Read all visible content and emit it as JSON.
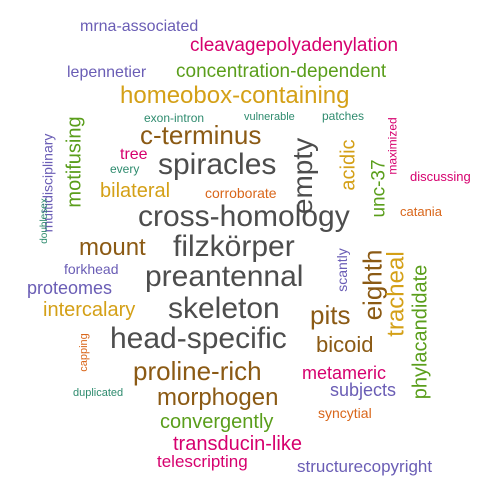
{
  "colors": {
    "dark": "#4d4d4d",
    "gold": "#d4a017",
    "green": "#5a9e1b",
    "magenta": "#d6006e",
    "brown": "#8b5a14",
    "purple": "#6a5db5",
    "teal": "#2e8b6e",
    "orange": "#d9661a"
  },
  "words": [
    {
      "text": "mrna-associated",
      "color": "purple"
    },
    {
      "text": "cleavagepolyadenylation",
      "color": "magenta"
    },
    {
      "text": "lepennetier",
      "color": "purple"
    },
    {
      "text": "concentration-dependent",
      "color": "green"
    },
    {
      "text": "homeobox-containing",
      "color": "gold"
    },
    {
      "text": "exon-intron",
      "color": "teal"
    },
    {
      "text": "vulnerable",
      "color": "teal"
    },
    {
      "text": "patches",
      "color": "teal"
    },
    {
      "text": "c-terminus",
      "color": "brown"
    },
    {
      "text": "tree",
      "color": "magenta"
    },
    {
      "text": "every",
      "color": "teal"
    },
    {
      "text": "spiracles",
      "color": "dark"
    },
    {
      "text": "bilateral",
      "color": "gold"
    },
    {
      "text": "corroborate",
      "color": "orange"
    },
    {
      "text": "discussing",
      "color": "magenta"
    },
    {
      "text": "cross-homology",
      "color": "dark"
    },
    {
      "text": "catania",
      "color": "orange"
    },
    {
      "text": "mount",
      "color": "brown"
    },
    {
      "text": "filzkörper",
      "color": "dark"
    },
    {
      "text": "forkhead",
      "color": "purple"
    },
    {
      "text": "preantennal",
      "color": "dark"
    },
    {
      "text": "proteomes",
      "color": "purple"
    },
    {
      "text": "intercalary",
      "color": "gold"
    },
    {
      "text": "skeleton",
      "color": "dark"
    },
    {
      "text": "pits",
      "color": "brown"
    },
    {
      "text": "head-specific",
      "color": "dark"
    },
    {
      "text": "bicoid",
      "color": "brown"
    },
    {
      "text": "proline-rich",
      "color": "brown"
    },
    {
      "text": "metameric",
      "color": "magenta"
    },
    {
      "text": "subjects",
      "color": "purple"
    },
    {
      "text": "duplicated",
      "color": "teal"
    },
    {
      "text": "morphogen",
      "color": "brown"
    },
    {
      "text": "syncytial",
      "color": "orange"
    },
    {
      "text": "convergently",
      "color": "green"
    },
    {
      "text": "transducin-like",
      "color": "magenta"
    },
    {
      "text": "telescripting",
      "color": "magenta"
    },
    {
      "text": "structurecopyright",
      "color": "purple"
    },
    {
      "text": "motifusing",
      "color": "green"
    },
    {
      "text": "multidisciplinary",
      "color": "purple"
    },
    {
      "text": "doublesex",
      "color": "teal"
    },
    {
      "text": "capping",
      "color": "orange"
    },
    {
      "text": "empty",
      "color": "dark"
    },
    {
      "text": "acidic",
      "color": "gold"
    },
    {
      "text": "unc-37",
      "color": "green"
    },
    {
      "text": "maximized",
      "color": "magenta"
    },
    {
      "text": "scantly",
      "color": "purple"
    },
    {
      "text": "eighth",
      "color": "brown"
    },
    {
      "text": "tracheal",
      "color": "gold"
    },
    {
      "text": "phylacandidate",
      "color": "green"
    }
  ]
}
